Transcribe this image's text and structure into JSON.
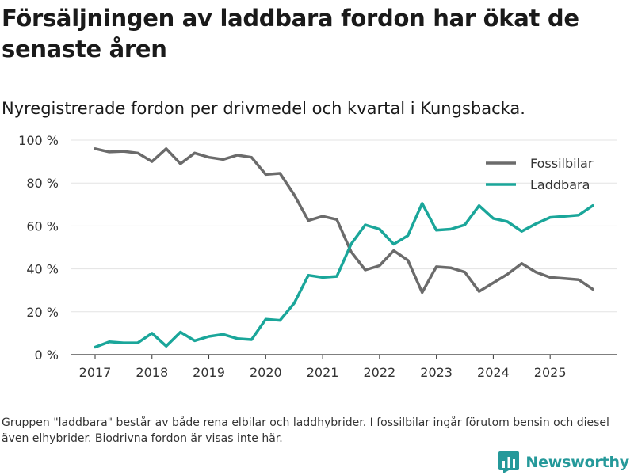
{
  "title": "Försäljningen av laddbara fordon har ökat de senaste åren",
  "subtitle": "Nyregistrerade fordon per drivmedel och kvartal i Kungsbacka.",
  "note": "Gruppen \"laddbara\" består av både rena elbilar och laddhybrider. I fossilbilar ingår förutom bensin och diesel även elhybrider. Biodrivna fordon är visas inte här.",
  "brand": {
    "name": "Newsworthy",
    "icon": "newsworthy-logo-icon"
  },
  "colors": {
    "fossil": "#6b6b6b",
    "laddbara": "#1aa69a",
    "grid": "#e3e3e3",
    "axis": "#333333"
  },
  "chart_data": {
    "type": "line",
    "title": "Försäljningen av laddbara fordon har ökat de senaste åren",
    "subtitle": "Nyregistrerade fordon per drivmedel och kvartal i Kungsbacka.",
    "xlabel": "",
    "ylabel": "",
    "ylim": [
      0,
      100
    ],
    "xlim": [
      2017,
      2025.75
    ],
    "yticks": [
      0,
      20,
      40,
      60,
      80,
      100
    ],
    "ytick_labels": [
      "0 %",
      "20 %",
      "40 %",
      "60 %",
      "80 %",
      "100 %"
    ],
    "xticks": [
      2017,
      2018,
      2019,
      2020,
      2021,
      2022,
      2023,
      2024,
      2025
    ],
    "xtick_labels": [
      "2017",
      "2018",
      "2019",
      "2020",
      "2021",
      "2022",
      "2023",
      "2024",
      "2025"
    ],
    "grid": true,
    "legend_position": "top-right",
    "x": [
      2017,
      2017.25,
      2017.5,
      2017.75,
      2018,
      2018.25,
      2018.5,
      2018.75,
      2019,
      2019.25,
      2019.5,
      2019.75,
      2020,
      2020.25,
      2020.5,
      2020.75,
      2021,
      2021.25,
      2021.5,
      2021.75,
      2022,
      2022.25,
      2022.5,
      2022.75,
      2023,
      2023.25,
      2023.5,
      2023.75,
      2024,
      2024.25,
      2024.5,
      2024.75,
      2025,
      2025.25,
      2025.5,
      2025.75
    ],
    "series": [
      {
        "name": "Fossilbilar",
        "color": "#6b6b6b",
        "values": [
          96,
          94.5,
          94.8,
          94,
          90,
          96,
          89,
          94,
          92,
          91,
          93,
          92,
          84,
          84.5,
          74.5,
          62.5,
          64.5,
          63,
          48,
          39.5,
          41.5,
          48.5,
          44,
          29,
          41,
          40.5,
          38.5,
          29.5,
          33.5,
          37.5,
          42.5,
          38.5,
          36,
          35.5,
          35,
          30.5
        ]
      },
      {
        "name": "Laddbara",
        "color": "#1aa69a",
        "values": [
          3.5,
          6,
          5.5,
          5.5,
          10,
          4,
          10.5,
          6.5,
          8.5,
          9.5,
          7.5,
          7,
          16.5,
          16,
          24,
          37,
          36,
          36.5,
          51.5,
          60.5,
          58.5,
          51.5,
          55.5,
          70.5,
          58,
          58.5,
          60.5,
          69.5,
          63.5,
          62,
          57.5,
          61,
          64,
          64.5,
          65,
          69.5
        ]
      }
    ]
  }
}
